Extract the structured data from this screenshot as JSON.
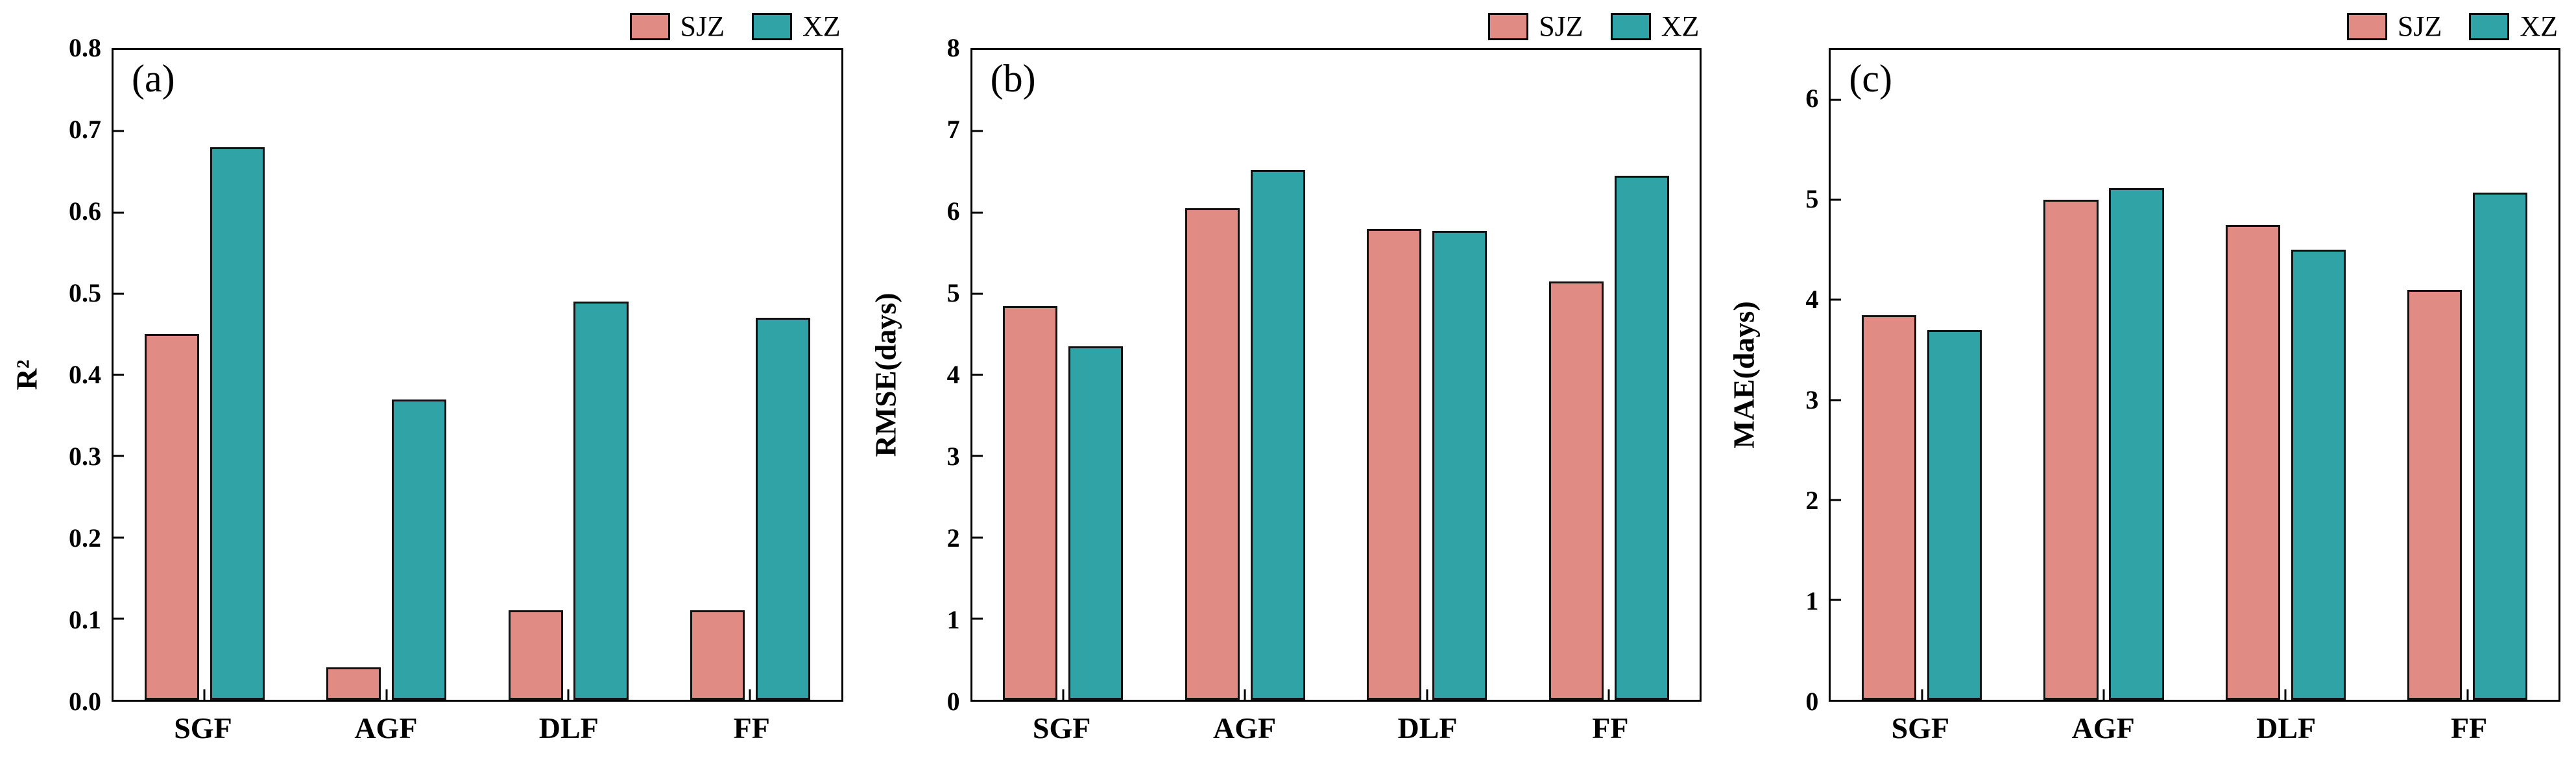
{
  "colors": {
    "sjz_fill": "#E08B83",
    "xz_fill": "#2FA3A6",
    "bar_border": "#121212",
    "axis": "#000000",
    "background": "#FFFFFF"
  },
  "chart_data": [
    {
      "type": "bar",
      "panel_label": "(a)",
      "title": "",
      "xlabel": "",
      "ylabel": "R²",
      "categories": [
        "SGF",
        "AGF",
        "DLF",
        "FF"
      ],
      "series": [
        {
          "name": "SJZ",
          "color": "#E08B83",
          "values": [
            0.45,
            0.04,
            0.11,
            0.11
          ]
        },
        {
          "name": "XZ",
          "color": "#2FA3A6",
          "values": [
            0.68,
            0.37,
            0.49,
            0.47
          ]
        }
      ],
      "ylim": [
        0,
        0.8
      ],
      "yticks": [
        0,
        0.1,
        0.2,
        0.3,
        0.4,
        0.5,
        0.6,
        0.7,
        0.8
      ],
      "ytick_labels": [
        "0.0",
        "0.1",
        "0.2",
        "0.3",
        "0.4",
        "0.5",
        "0.6",
        "0.7",
        "0.8"
      ],
      "grid": false,
      "legend_position": "top-right"
    },
    {
      "type": "bar",
      "panel_label": "(b)",
      "title": "",
      "xlabel": "",
      "ylabel": "RMSE(days)",
      "categories": [
        "SGF",
        "AGF",
        "DLF",
        "FF"
      ],
      "series": [
        {
          "name": "SJZ",
          "color": "#E08B83",
          "values": [
            4.85,
            6.05,
            5.8,
            5.15
          ]
        },
        {
          "name": "XZ",
          "color": "#2FA3A6",
          "values": [
            4.35,
            6.52,
            5.77,
            6.45
          ]
        }
      ],
      "ylim": [
        0,
        8
      ],
      "yticks": [
        0,
        1,
        2,
        3,
        4,
        5,
        6,
        7,
        8
      ],
      "ytick_labels": [
        "0",
        "1",
        "2",
        "3",
        "4",
        "5",
        "6",
        "7",
        "8"
      ],
      "grid": false,
      "legend_position": "top-right"
    },
    {
      "type": "bar",
      "panel_label": "(c)",
      "title": "",
      "xlabel": "",
      "ylabel": "MAE(days)",
      "categories": [
        "SGF",
        "AGF",
        "DLF",
        "FF"
      ],
      "series": [
        {
          "name": "SJZ",
          "color": "#E08B83",
          "values": [
            3.85,
            5.0,
            4.75,
            4.1
          ]
        },
        {
          "name": "XZ",
          "color": "#2FA3A6",
          "values": [
            3.7,
            5.12,
            4.5,
            5.07
          ]
        }
      ],
      "ylim": [
        0,
        6.5
      ],
      "yticks": [
        0,
        1,
        2,
        3,
        4,
        5,
        6
      ],
      "ytick_labels": [
        "0",
        "1",
        "2",
        "3",
        "4",
        "5",
        "6"
      ],
      "grid": false,
      "legend_position": "top-right"
    }
  ]
}
